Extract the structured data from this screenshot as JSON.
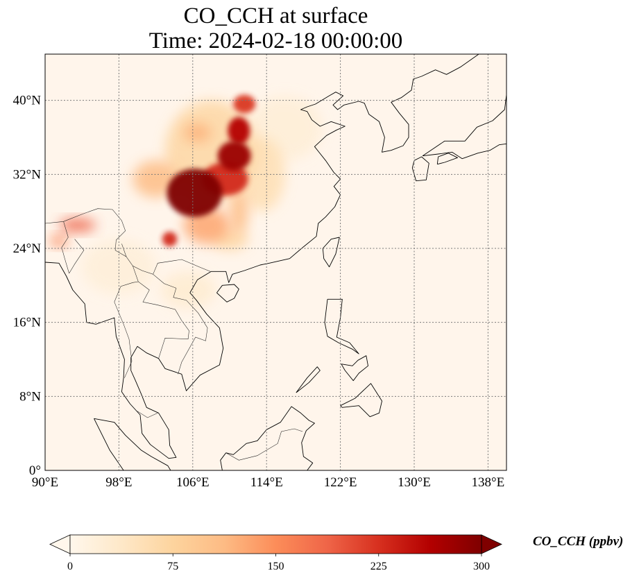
{
  "title": {
    "line1": "CO_CCH at surface",
    "line2": "Time: 2024-02-18 00:00:00"
  },
  "map": {
    "projection": "PlateCarree",
    "lon_range": [
      90,
      140
    ],
    "lat_range": [
      0,
      45
    ],
    "gridlines": "dotted",
    "background_color": "#fff5eb"
  },
  "axes": {
    "x_ticks": [
      {
        "value": 90,
        "label": "90°E"
      },
      {
        "value": 98,
        "label": "98°E"
      },
      {
        "value": 106,
        "label": "106°E"
      },
      {
        "value": 114,
        "label": "114°E"
      },
      {
        "value": 122,
        "label": "122°E"
      },
      {
        "value": 130,
        "label": "130°E"
      },
      {
        "value": 138,
        "label": "138°E"
      }
    ],
    "y_ticks": [
      {
        "value": 40,
        "label": "40°N"
      },
      {
        "value": 32,
        "label": "32°N"
      },
      {
        "value": 24,
        "label": "24°N"
      },
      {
        "value": 16,
        "label": "16°N"
      },
      {
        "value": 8,
        "label": "8°N"
      },
      {
        "value": 0,
        "label": "0°"
      }
    ]
  },
  "colorbar": {
    "label": "CO_CCH (ppbv)",
    "colormap": "OrRd",
    "extend": "both",
    "range": [
      0,
      300
    ],
    "ticks": [
      {
        "value": 0,
        "label": "0"
      },
      {
        "value": 75,
        "label": "75"
      },
      {
        "value": 150,
        "label": "150"
      },
      {
        "value": 225,
        "label": "225"
      },
      {
        "value": 300,
        "label": "300"
      }
    ],
    "stops": [
      "#fff7ec",
      "#fee8c8",
      "#fdd49e",
      "#fdbb84",
      "#fc8d59",
      "#ef6548",
      "#d7301f",
      "#b30000",
      "#7f0000"
    ]
  },
  "field_blobs": [
    {
      "lon": 106.2,
      "lat": 30.0,
      "rlon": 3.0,
      "rlat": 2.6,
      "value": 300
    },
    {
      "lon": 110.5,
      "lat": 34.0,
      "rlon": 1.8,
      "rlat": 1.6,
      "value": 280
    },
    {
      "lon": 111.0,
      "lat": 36.7,
      "rlon": 1.2,
      "rlat": 1.5,
      "value": 260
    },
    {
      "lon": 111.6,
      "lat": 39.6,
      "rlon": 1.2,
      "rlat": 1.0,
      "value": 220
    },
    {
      "lon": 109.5,
      "lat": 31.5,
      "rlon": 2.5,
      "rlat": 1.8,
      "value": 230
    },
    {
      "lon": 103.5,
      "lat": 25.0,
      "rlon": 0.8,
      "rlat": 0.8,
      "value": 230
    },
    {
      "lon": 107.5,
      "lat": 26.5,
      "rlon": 2.5,
      "rlat": 2.0,
      "value": 130
    },
    {
      "lon": 93.5,
      "lat": 26.5,
      "rlon": 2.0,
      "rlat": 0.7,
      "value": 190
    },
    {
      "lon": 91.5,
      "lat": 24.8,
      "rlon": 1.0,
      "rlat": 0.6,
      "value": 160
    },
    {
      "lon": 108.0,
      "lat": 34.5,
      "rlon": 5.0,
      "rlat": 5.5,
      "value": 70
    },
    {
      "lon": 106.5,
      "lat": 36.5,
      "rlon": 1.5,
      "rlat": 1.0,
      "value": 120
    },
    {
      "lon": 113.5,
      "lat": 32.0,
      "rlon": 2.5,
      "rlat": 4.0,
      "value": 55
    },
    {
      "lon": 102.0,
      "lat": 31.5,
      "rlon": 2.5,
      "rlat": 2.0,
      "value": 110
    },
    {
      "lon": 111.0,
      "lat": 28.0,
      "rlon": 1.0,
      "rlat": 2.5,
      "value": 110
    },
    {
      "lon": 110.0,
      "lat": 25.0,
      "rlon": 2.0,
      "rlat": 1.2,
      "value": 70
    },
    {
      "lon": 105.5,
      "lat": 19.5,
      "rlon": 3.0,
      "rlat": 2.0,
      "value": 28
    },
    {
      "lon": 116.0,
      "lat": 37.0,
      "rlon": 4.0,
      "rlat": 3.5,
      "value": 22
    },
    {
      "lon": 98.0,
      "lat": 22.0,
      "rlon": 4.0,
      "rlat": 3.0,
      "value": 20
    }
  ],
  "coastlines": {
    "mainland": [
      [
        90,
        22.5
      ],
      [
        91.5,
        22.4
      ],
      [
        92.3,
        21
      ],
      [
        93,
        19.5
      ],
      [
        94.3,
        18
      ],
      [
        94.5,
        16
      ],
      [
        95.5,
        15.8
      ],
      [
        97.5,
        16.5
      ],
      [
        97.7,
        14.5
      ],
      [
        98.6,
        12
      ],
      [
        98.5,
        10
      ],
      [
        98.3,
        8.5
      ],
      [
        99.2,
        7.2
      ],
      [
        100.3,
        6
      ],
      [
        100.5,
        4
      ],
      [
        101.4,
        2.8
      ],
      [
        103.4,
        1.3
      ],
      [
        104.2,
        1.4
      ],
      [
        103.5,
        2.7
      ],
      [
        103.4,
        4.4
      ],
      [
        102.3,
        6.2
      ],
      [
        101,
        6.8
      ],
      [
        100.4,
        8.3
      ],
      [
        99.8,
        9.7
      ],
      [
        99.3,
        10.8
      ],
      [
        99.3,
        12.2
      ],
      [
        100,
        13.4
      ],
      [
        101,
        12.7
      ],
      [
        102.3,
        12.1
      ],
      [
        103,
        11
      ],
      [
        104.8,
        10.4
      ],
      [
        105.3,
        8.6
      ],
      [
        106.8,
        10.3
      ],
      [
        108.9,
        11.4
      ],
      [
        109.3,
        13.2
      ],
      [
        108.9,
        15.4
      ],
      [
        107.5,
        16.9
      ],
      [
        106.4,
        18.4
      ],
      [
        105.7,
        19.2
      ],
      [
        106.5,
        20.6
      ],
      [
        108,
        21.5
      ],
      [
        109.6,
        21.5
      ],
      [
        109.9,
        20.3
      ],
      [
        110.3,
        21.2
      ],
      [
        111.6,
        21.6
      ],
      [
        113.3,
        22.2
      ],
      [
        114.3,
        22.4
      ],
      [
        116.5,
        22.9
      ],
      [
        117.8,
        24
      ],
      [
        119.4,
        25.3
      ],
      [
        119.6,
        26.7
      ],
      [
        120.4,
        27.4
      ],
      [
        121.4,
        28.5
      ],
      [
        122,
        29.8
      ],
      [
        121.3,
        30.7
      ],
      [
        122,
        31.5
      ],
      [
        121.3,
        32.2
      ],
      [
        120.4,
        33.5
      ],
      [
        119.6,
        34.5
      ],
      [
        119.2,
        35
      ],
      [
        120.5,
        36.2
      ],
      [
        121.6,
        36.8
      ],
      [
        122.5,
        37.2
      ],
      [
        121,
        37.7
      ],
      [
        119.8,
        37.2
      ],
      [
        118.9,
        37.9
      ],
      [
        118.4,
        38.8
      ],
      [
        117.7,
        39
      ],
      [
        118.4,
        39.3
      ],
      [
        119.3,
        39.6
      ],
      [
        120.8,
        40.5
      ],
      [
        121.5,
        40.9
      ],
      [
        122.3,
        40.5
      ],
      [
        121.2,
        39.5
      ],
      [
        121.7,
        39
      ],
      [
        122.4,
        39.5
      ],
      [
        124,
        39.9
      ],
      [
        124.6,
        39.7
      ],
      [
        125.1,
        38.5
      ],
      [
        126.2,
        37.7
      ],
      [
        126.8,
        36
      ],
      [
        126.5,
        34.4
      ],
      [
        127.5,
        34.6
      ],
      [
        128.8,
        35.1
      ],
      [
        129.4,
        36
      ],
      [
        129.4,
        37.4
      ],
      [
        128.4,
        38.6
      ],
      [
        127.5,
        39.8
      ],
      [
        128.6,
        40.3
      ],
      [
        129.7,
        41.1
      ],
      [
        129.9,
        42.3
      ],
      [
        130.8,
        42.6
      ],
      [
        132.3,
        43.3
      ],
      [
        133.5,
        42.8
      ],
      [
        135,
        43.6
      ],
      [
        137,
        45
      ]
    ],
    "japan_honshu": [
      [
        130.9,
        34
      ],
      [
        131.8,
        34.6
      ],
      [
        133.3,
        35.6
      ],
      [
        135.5,
        35.6
      ],
      [
        136.8,
        37.1
      ],
      [
        138.5,
        37.8
      ],
      [
        139.8,
        39
      ],
      [
        140,
        40.6
      ],
      [
        140,
        45
      ],
      [
        140,
        35.3
      ],
      [
        139.2,
        35.2
      ],
      [
        138.2,
        34.6
      ],
      [
        136.9,
        34.3
      ],
      [
        135.2,
        33.7
      ],
      [
        134.1,
        34.4
      ],
      [
        132.6,
        34.2
      ],
      [
        130.9,
        34
      ]
    ],
    "japan_kyushu": [
      [
        130,
        33.5
      ],
      [
        130.8,
        33.9
      ],
      [
        131.6,
        33.2
      ],
      [
        131.3,
        31.4
      ],
      [
        130.2,
        31.3
      ],
      [
        129.8,
        32.7
      ],
      [
        130,
        33.5
      ]
    ],
    "japan_shikoku": [
      [
        132.5,
        33.1
      ],
      [
        133.3,
        33.3
      ],
      [
        134.7,
        33.8
      ],
      [
        133.7,
        34.3
      ],
      [
        132.6,
        33.9
      ],
      [
        132.5,
        33.1
      ]
    ],
    "taiwan": [
      [
        121.9,
        25.2
      ],
      [
        121.5,
        23.4
      ],
      [
        120.8,
        22
      ],
      [
        120.2,
        22.9
      ],
      [
        120.1,
        24
      ],
      [
        121,
        25
      ],
      [
        121.9,
        25.2
      ]
    ],
    "hainan": [
      [
        108.6,
        19.2
      ],
      [
        109.7,
        18.2
      ],
      [
        110.5,
        18.6
      ],
      [
        111,
        19.6
      ],
      [
        110.5,
        20.1
      ],
      [
        109.2,
        20
      ],
      [
        108.6,
        19.2
      ]
    ],
    "luzon": [
      [
        120.6,
        18.5
      ],
      [
        122.2,
        18.5
      ],
      [
        122,
        16.5
      ],
      [
        121.6,
        14.4
      ],
      [
        123,
        13.8
      ],
      [
        124,
        12.6
      ],
      [
        123.3,
        13.1
      ],
      [
        121.8,
        13.8
      ],
      [
        120.6,
        14.5
      ],
      [
        120.3,
        16
      ],
      [
        120.6,
        18.5
      ]
    ],
    "mindanao": [
      [
        122,
        7
      ],
      [
        123.6,
        7.8
      ],
      [
        125.3,
        9.4
      ],
      [
        126.5,
        7.5
      ],
      [
        126.2,
        6.2
      ],
      [
        125.2,
        5.8
      ],
      [
        124,
        7
      ],
      [
        122.2,
        6.8
      ],
      [
        122,
        7
      ]
    ],
    "visayas": [
      [
        122.5,
        10.8
      ],
      [
        123.4,
        9.7
      ],
      [
        124,
        10.5
      ],
      [
        125,
        11.3
      ],
      [
        124.8,
        12.4
      ],
      [
        123.9,
        11.9
      ],
      [
        123.3,
        11.3
      ],
      [
        122.1,
        11.5
      ],
      [
        122.5,
        10.8
      ]
    ],
    "palawan": [
      [
        117.2,
        8.4
      ],
      [
        118.6,
        9.5
      ],
      [
        119.8,
        10.8
      ],
      [
        119.5,
        11.2
      ],
      [
        118.4,
        10
      ],
      [
        117.2,
        8.4
      ]
    ],
    "borneo": [
      [
        109.6,
        1.9
      ],
      [
        110.4,
        1.7
      ],
      [
        111.8,
        2.9
      ],
      [
        113,
        3.2
      ],
      [
        114,
        4.4
      ],
      [
        115.5,
        5.2
      ],
      [
        116.7,
        6.9
      ],
      [
        117.7,
        6.2
      ],
      [
        118.6,
        5.4
      ],
      [
        119.2,
        5.1
      ],
      [
        118.3,
        4.3
      ],
      [
        117.8,
        3
      ],
      [
        118,
        1.5
      ],
      [
        119,
        0.8
      ],
      [
        118.4,
        0
      ],
      [
        109.2,
        0
      ],
      [
        109,
        1.1
      ],
      [
        109.6,
        1.9
      ]
    ],
    "sumatra": [
      [
        95.3,
        5.6
      ],
      [
        97.5,
        5.2
      ],
      [
        98.7,
        3.8
      ],
      [
        100.4,
        2.2
      ],
      [
        101.5,
        1.5
      ],
      [
        103.3,
        0.5
      ],
      [
        103.6,
        0
      ],
      [
        98.5,
        0
      ],
      [
        97,
        2.2
      ],
      [
        95.3,
        5.6
      ]
    ]
  },
  "borders": [
    [
      [
        90,
        26.7
      ],
      [
        92,
        26.9
      ],
      [
        94,
        27.7
      ],
      [
        95.7,
        28.3
      ],
      [
        97.3,
        28.2
      ],
      [
        98.3,
        27
      ],
      [
        98.7,
        25.9
      ],
      [
        97.7,
        24.9
      ],
      [
        97.6,
        23.8
      ],
      [
        98.8,
        23.1
      ],
      [
        99.5,
        22.1
      ],
      [
        100.5,
        21.6
      ],
      [
        101.7,
        21.2
      ],
      [
        102.2,
        22.4
      ],
      [
        103.5,
        22.6
      ],
      [
        104.8,
        22.8
      ],
      [
        106.7,
        22
      ],
      [
        107.9,
        21.5
      ]
    ],
    [
      [
        93.2,
        25
      ],
      [
        94.2,
        23.8
      ],
      [
        93.2,
        22.3
      ],
      [
        92.6,
        21.3
      ]
    ],
    [
      [
        99.5,
        22.1
      ],
      [
        100.1,
        20.4
      ],
      [
        101.3,
        19.5
      ],
      [
        100.6,
        18.2
      ],
      [
        102.1,
        17.9
      ],
      [
        104.1,
        17.4
      ],
      [
        104.8,
        16.2
      ],
      [
        105.6,
        15.1
      ],
      [
        105.5,
        14.2
      ],
      [
        103,
        14.3
      ],
      [
        102.3,
        12.1
      ]
    ],
    [
      [
        101.7,
        21.2
      ],
      [
        102.9,
        20.2
      ],
      [
        104.2,
        19.7
      ],
      [
        103.9,
        18.7
      ],
      [
        105.3,
        18.4
      ],
      [
        106.6,
        17
      ],
      [
        107.6,
        15.4
      ],
      [
        107.4,
        14
      ],
      [
        106.3,
        14.4
      ],
      [
        104.8,
        11.7
      ],
      [
        104.4,
        10.4
      ]
    ],
    [
      [
        98.6,
        10
      ],
      [
        99.4,
        11.8
      ],
      [
        99.1,
        14.2
      ],
      [
        98.5,
        15.8
      ],
      [
        97.5,
        18.2
      ],
      [
        98.2,
        19.9
      ],
      [
        99.5,
        20.3
      ],
      [
        100.1,
        20.4
      ]
    ],
    [
      [
        100,
        6.4
      ],
      [
        101.1,
        5.7
      ],
      [
        102.2,
        6.2
      ]
    ],
    [
      [
        109.6,
        1.9
      ],
      [
        111,
        1.1
      ],
      [
        113,
        1.6
      ],
      [
        115.2,
        2.9
      ],
      [
        115.6,
        4.2
      ],
      [
        117,
        4.5
      ],
      [
        117.9,
        4.2
      ]
    ],
    [
      [
        90,
        26.7
      ],
      [
        88.5,
        27.8
      ]
    ],
    [
      [
        92,
        26.9
      ],
      [
        92.5,
        25.2
      ],
      [
        91.8,
        24.1
      ],
      [
        92.1,
        23
      ],
      [
        92.6,
        21.3
      ]
    ],
    [
      [
        98.8,
        23.1
      ],
      [
        98.3,
        24.5
      ]
    ]
  ]
}
